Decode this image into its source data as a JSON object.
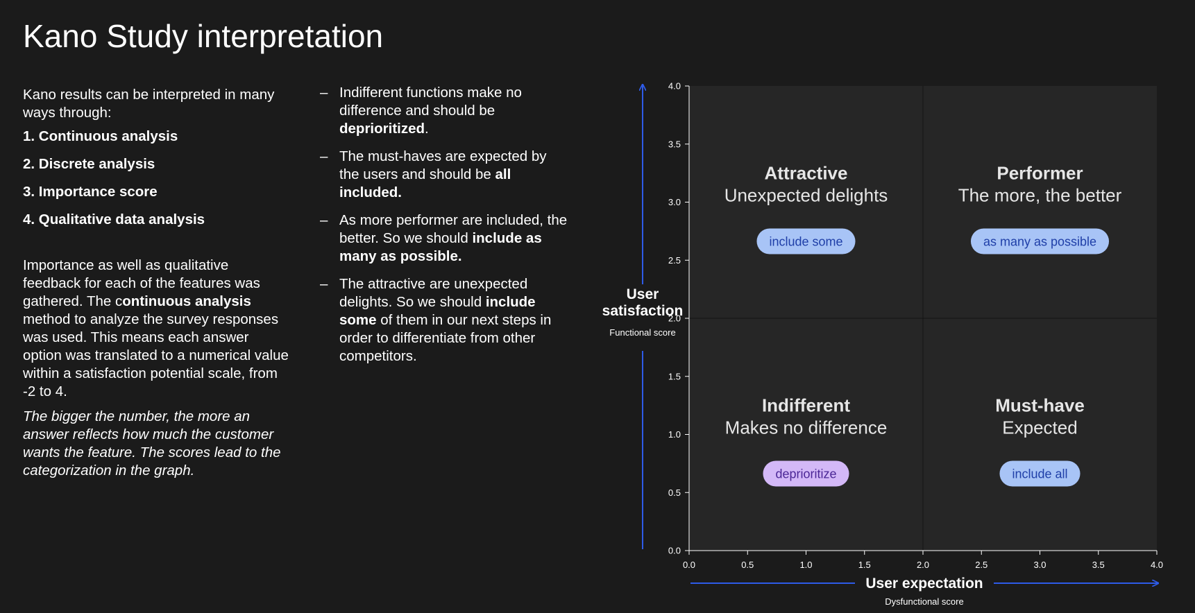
{
  "title": "Kano Study interpretation",
  "intro": "Kano results can be interpreted in many ways through:",
  "methods": [
    "1. Continuous analysis",
    "2. Discrete analysis",
    "3. Importance score",
    "4. Qualitative data analysis"
  ],
  "paragraph": {
    "part1": "Importance as well as qualitative feedback for each of the features was gathered. The c",
    "bold": "ontinuous analysis",
    "part2": " method to analyze the survey responses was used. This means each answer option was translated to a numerical value within a satisfaction potential scale, from -2 to 4."
  },
  "italic_note": "The bigger the number, the more an answer reflects how much the customer wants the feature. The scores lead to the categorization in the graph.",
  "bullets": [
    {
      "dash": "–",
      "pre": "Indifferent functions make no difference and should be ",
      "bold": "deprioritized",
      "post": "."
    },
    {
      "dash": "–",
      "pre": "The must-haves are expected by the users and should be ",
      "bold": "all included.",
      "post": ""
    },
    {
      "dash": "–",
      "pre": "As more performer are included, the better. So we should ",
      "bold": "include as many as possible.",
      "post": ""
    },
    {
      "dash": "–",
      "pre": "The attractive are unexpected delights. So we should ",
      "bold": "include some",
      "post": " of them in our next steps in order to differentiate from other competitors."
    }
  ],
  "chart_data": {
    "type": "quadrant",
    "xlim": [
      0,
      4.0
    ],
    "ylim": [
      0,
      4.0
    ],
    "xticks": [
      "0.0",
      "0.5",
      "1.0",
      "1.5",
      "2.0",
      "2.5",
      "3.0",
      "3.5",
      "4.0"
    ],
    "yticks": [
      "0.0",
      "0.5",
      "1.0",
      "1.5",
      "2.0",
      "2.5",
      "3.0",
      "3.5",
      "4.0"
    ],
    "xlabel": "User expectation",
    "xsublabel": "Dysfunctional score",
    "ylabel_line1": "User",
    "ylabel_line2": "satisfaction",
    "ysublabel": "Functional score",
    "divider": {
      "x": 2.0,
      "y": 2.0
    },
    "quadrants": [
      {
        "name": "Attractive",
        "subtitle": "Unexpected delights",
        "pill": "include some",
        "x": 1.0,
        "y": 3.0,
        "pill_color": "#a8c4f6",
        "pill_text_color": "#1f3fa8"
      },
      {
        "name": "Performer",
        "subtitle": "The more, the better",
        "pill": "as many as possible",
        "x": 3.0,
        "y": 3.0,
        "pill_color": "#a8c4f6",
        "pill_text_color": "#1f3fa8"
      },
      {
        "name": "Indifferent",
        "subtitle": "Makes no difference",
        "pill": "deprioritize",
        "x": 1.0,
        "y": 1.0,
        "pill_color": "#d3b8f7",
        "pill_text_color": "#4b2796"
      },
      {
        "name": "Must-have",
        "subtitle": "Expected",
        "pill": "include all",
        "x": 3.0,
        "y": 1.0,
        "pill_color": "#a8c4f6",
        "pill_text_color": "#1f3fa8"
      }
    ],
    "colors": {
      "plot_bg": "#262626",
      "axis_arrow": "#2e5be8",
      "tick": "#ffffff",
      "quadrant_title": "#e6e6e6"
    }
  }
}
